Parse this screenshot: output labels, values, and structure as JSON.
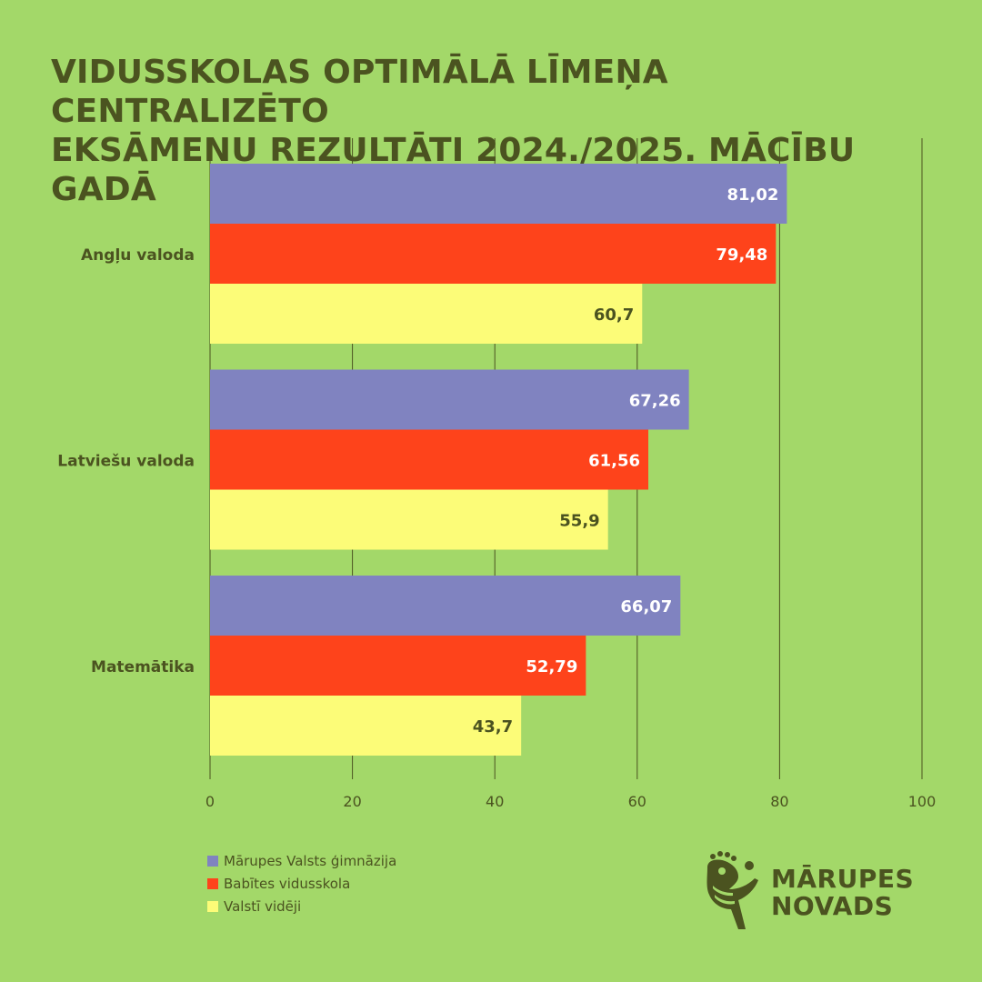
{
  "title_lines": [
    "VIDUSSKOLAS OPTIMĀLĀ LĪMEŅA CENTRALIZĒTO",
    "EKSĀMENU REZULTĀTI 2024./2025. MĀCĪBU GADĀ"
  ],
  "colors": {
    "background": "#a3d869",
    "text": "#4b5320",
    "gridline": "#4b5320"
  },
  "chart_data": {
    "type": "bar",
    "orientation": "horizontal",
    "title": "VIDUSSKOLAS OPTIMĀLĀ LĪMEŅA CENTRALIZĒTO EKSĀMENU REZULTĀTI 2024./2025. MĀCĪBU GADĀ",
    "categories": [
      "Angļu valoda",
      "Latviešu valoda",
      "Matemātika"
    ],
    "series": [
      {
        "name": "Mārupes Valsts ģimnāzija",
        "color": "#8083c0",
        "label_color": "#ffffff",
        "values": [
          81.02,
          67.26,
          66.07
        ],
        "labels": [
          "81,02",
          "67,26",
          "66,07"
        ]
      },
      {
        "name": "Babītes vidusskola",
        "color": "#fe431b",
        "label_color": "#ffffff",
        "values": [
          79.48,
          61.56,
          52.79
        ],
        "labels": [
          "79,48",
          "61,56",
          "52,79"
        ]
      },
      {
        "name": "Valstī vidēji",
        "color": "#fcfc78",
        "label_color": "#4b5320",
        "values": [
          60.7,
          55.9,
          43.7
        ],
        "labels": [
          "60,7",
          "55,9",
          "43,7"
        ]
      }
    ],
    "xlim": [
      0,
      100
    ],
    "xticks": [
      0,
      20,
      40,
      60,
      80,
      100
    ],
    "xlabel": "",
    "ylabel": "",
    "grid": "vertical",
    "legend": "bottom-left"
  },
  "logo": {
    "icon": "rooster-logo-icon",
    "lines": [
      "MĀRUPES",
      "NOVADS"
    ]
  }
}
